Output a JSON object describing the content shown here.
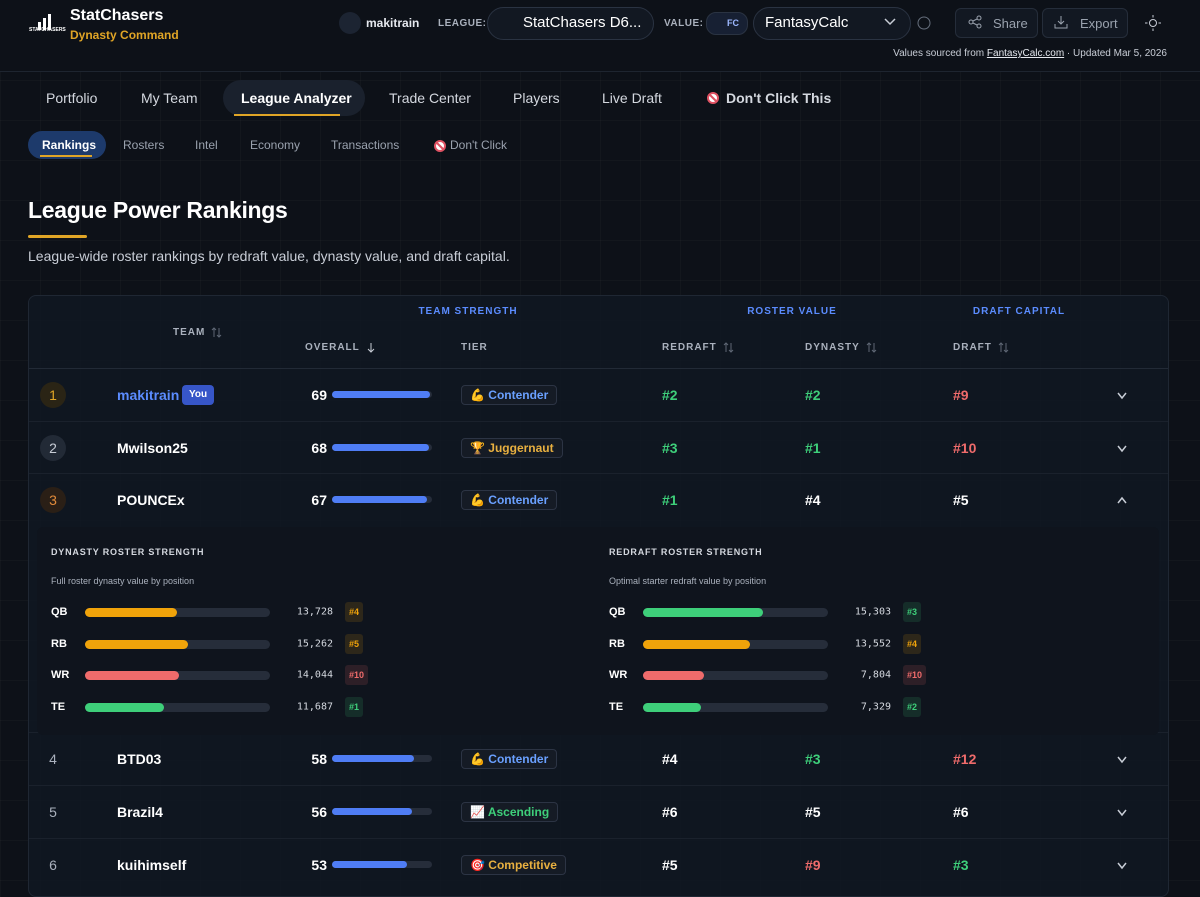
{
  "header": {
    "brand": "StatChasers",
    "logo_text": "STATCHASERS",
    "tagline": "Dynasty Command",
    "user": "makitrain",
    "league_label": "LEAGUE:",
    "league": "StatChasers D6...",
    "value_label": "VALUE:",
    "value_badge": "FC",
    "value_source": "FantasyCalc",
    "share": "Share",
    "export": "Export",
    "source_prefix": "Values sourced from ",
    "source_link": "FantasyCalc.com",
    "source_suffix": " · Updated Mar 5, 2026"
  },
  "nav": {
    "tabs": [
      "Portfolio",
      "My Team",
      "League Analyzer",
      "Trade Center",
      "Players",
      "Live Draft",
      "Don't Click This"
    ],
    "active": 2
  },
  "subnav": {
    "tabs": [
      "Rankings",
      "Rosters",
      "Intel",
      "Economy",
      "Transactions",
      "Don't Click"
    ],
    "active": 0
  },
  "page": {
    "title": "League Power Rankings",
    "subtitle": "League-wide roster rankings by redraft value, dynasty value, and draft capital."
  },
  "table": {
    "groups": [
      "TEAM STRENGTH",
      "ROSTER VALUE",
      "DRAFT CAPITAL"
    ],
    "columns": [
      "TEAM",
      "OVERALL",
      "TIER",
      "REDRAFT",
      "DYNASTY",
      "DRAFT"
    ],
    "you_badge": "You",
    "rows": [
      {
        "rank": 1,
        "team": "makitrain",
        "you": true,
        "overall": 69,
        "tier": "💪 Contender",
        "tier_color": "#6aa0ff",
        "redraft": "#2",
        "dynasty": "#2",
        "draft": "#9"
      },
      {
        "rank": 2,
        "team": "Mwilson25",
        "you": false,
        "overall": 68,
        "tier": "🏆 Juggernaut",
        "tier_color": "#e8b040",
        "redraft": "#3",
        "dynasty": "#1",
        "draft": "#10"
      },
      {
        "rank": 3,
        "team": "POUNCEx",
        "you": false,
        "overall": 67,
        "tier": "💪 Contender",
        "tier_color": "#6aa0ff",
        "redraft": "#1",
        "dynasty": "#4",
        "draft": "#5"
      },
      {
        "rank": 4,
        "team": "BTD03",
        "you": false,
        "overall": 58,
        "tier": "💪 Contender",
        "tier_color": "#6aa0ff",
        "redraft": "#4",
        "dynasty": "#3",
        "draft": "#12"
      },
      {
        "rank": 5,
        "team": "Brazil4",
        "you": false,
        "overall": 56,
        "tier": "📈 Ascending",
        "tier_color": "#3ecf7a",
        "redraft": "#6",
        "dynasty": "#5",
        "draft": "#6"
      },
      {
        "rank": 6,
        "team": "kuihimself",
        "you": false,
        "overall": 53,
        "tier": "🎯 Competitive",
        "tier_color": "#e8b040",
        "redraft": "#5",
        "dynasty": "#9",
        "draft": "#3"
      }
    ],
    "expanded": {
      "row": 2,
      "panels": [
        {
          "title": "DYNASTY ROSTER STRENGTH",
          "subtitle": "Full roster dynasty value by position",
          "positions": [
            {
              "pos": "QB",
              "value": 13728,
              "label": "13,728",
              "rank": "#4"
            },
            {
              "pos": "RB",
              "value": 15262,
              "label": "15,262",
              "rank": "#5"
            },
            {
              "pos": "WR",
              "value": 14044,
              "label": "14,044",
              "rank": "#10"
            },
            {
              "pos": "TE",
              "value": 11687,
              "label": "11,687",
              "rank": "#1"
            }
          ]
        },
        {
          "title": "REDRAFT ROSTER STRENGTH",
          "subtitle": "Optimal starter redraft value by position",
          "positions": [
            {
              "pos": "QB",
              "value": 15303,
              "label": "15,303",
              "rank": "#3"
            },
            {
              "pos": "RB",
              "value": 13552,
              "label": "13,552",
              "rank": "#4"
            },
            {
              "pos": "WR",
              "value": 7804,
              "label": "7,804",
              "rank": "#10"
            },
            {
              "pos": "TE",
              "value": 7329,
              "label": "7,329",
              "rank": "#2"
            }
          ]
        }
      ]
    }
  }
}
